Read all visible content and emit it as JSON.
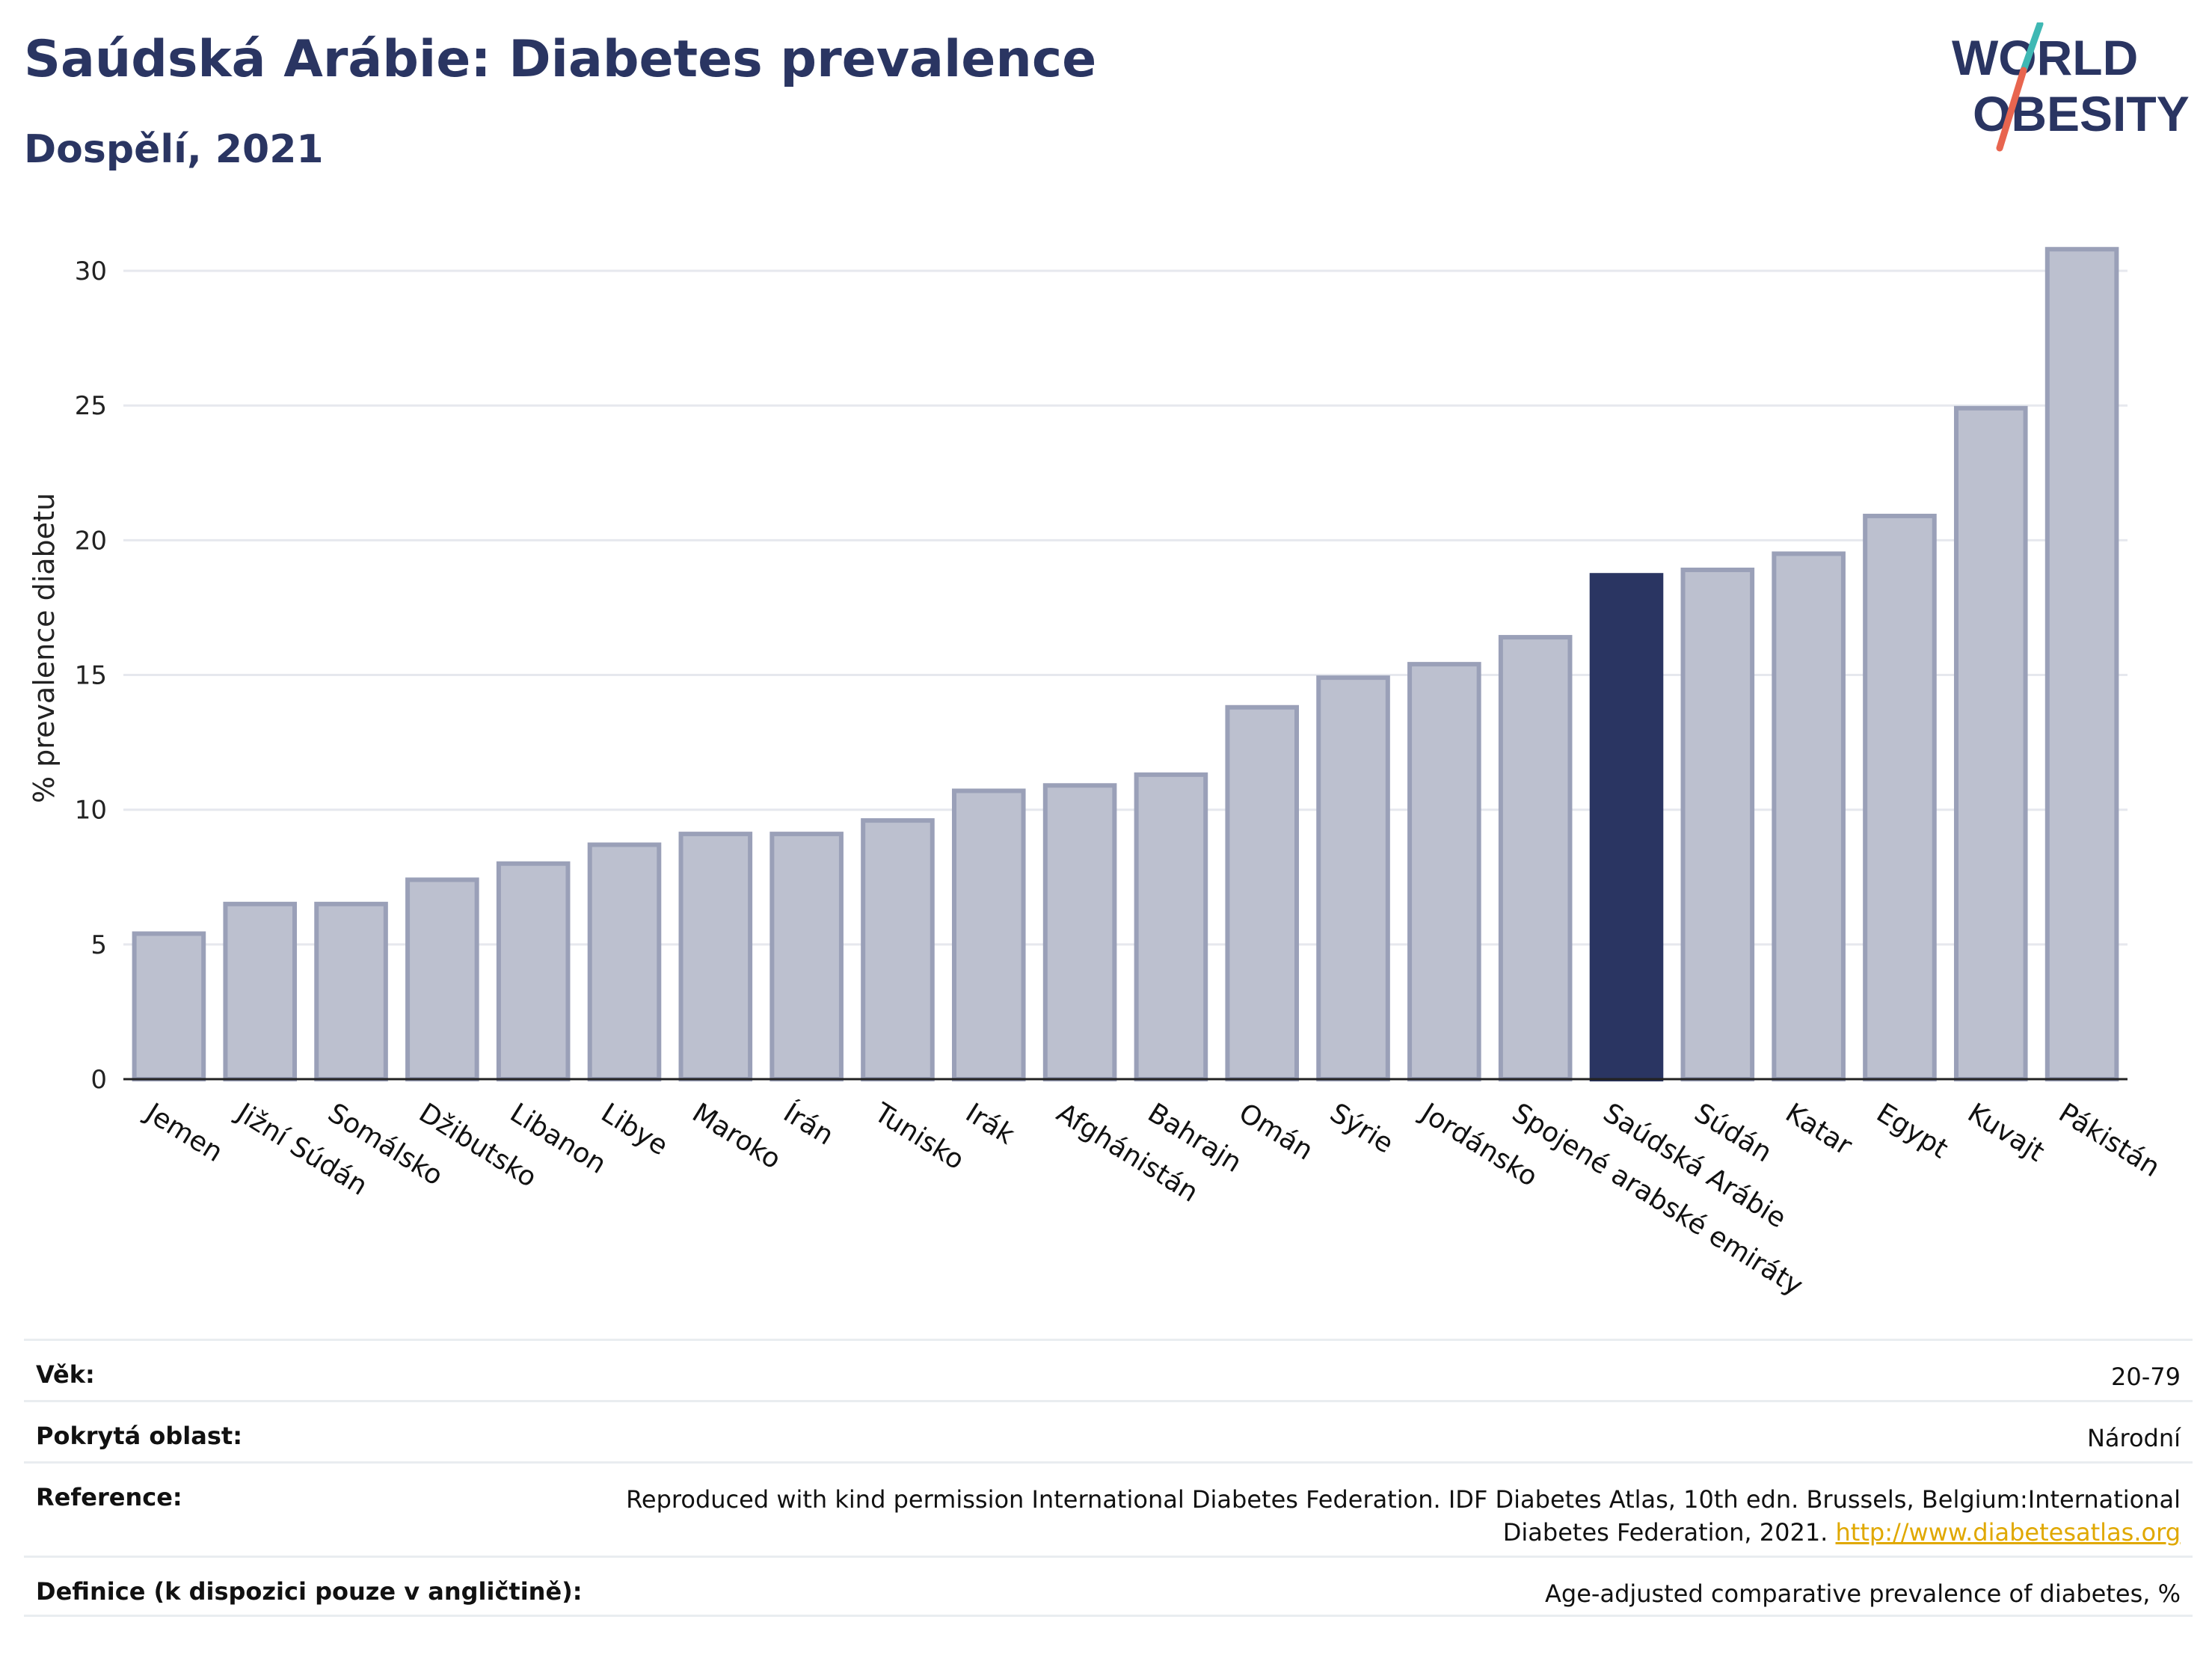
{
  "header": {
    "title": "Saúdská Arábie: Diabetes prevalence",
    "subtitle": "Dospělí, 2021"
  },
  "logo": {
    "line1": "WORLD",
    "line2": "OBESITY",
    "accent_teal": "#3fb8b4",
    "accent_red": "#e8654f"
  },
  "colors": {
    "bar_default": "#bcc0cf",
    "bar_border": "#9aa0b8",
    "bar_highlight": "#2a3562",
    "title": "#2a3562"
  },
  "chart_data": {
    "type": "bar",
    "ylabel": "% prevalence diabetu",
    "xlabel": "",
    "ylim": [
      0,
      32
    ],
    "yticks": [
      0,
      5,
      10,
      15,
      20,
      25,
      30
    ],
    "grid": true,
    "highlight": "Saúdská Arábie",
    "categories": [
      "Jemen",
      "Jižní Súdán",
      "Somálsko",
      "Džibutsko",
      "Libanon",
      "Libye",
      "Maroko",
      "Írán",
      "Tunisko",
      "Irák",
      "Afghánistán",
      "Bahrajn",
      "Omán",
      "Sýrie",
      "Jordánsko",
      "Spojené arabské emiráty",
      "Saúdská Arábie",
      "Súdán",
      "Katar",
      "Egypt",
      "Kuvajt",
      "Pákistán"
    ],
    "values": [
      5.4,
      6.5,
      6.5,
      7.4,
      8.0,
      8.7,
      9.1,
      9.1,
      9.6,
      10.7,
      10.9,
      11.3,
      13.8,
      14.9,
      15.4,
      16.4,
      18.7,
      18.9,
      19.5,
      20.9,
      24.9,
      30.8
    ]
  },
  "meta": [
    {
      "key": "Věk:",
      "value": "20-79"
    },
    {
      "key": "Pokrytá oblast:",
      "value": "Národní"
    },
    {
      "key": "Reference:",
      "value": "Reproduced with kind permission International Diabetes Federation.  IDF Diabetes Atlas, 10th edn. Brussels, Belgium:International Diabetes Federation, 2021. ",
      "link": "http://www.diabetesatlas.org"
    },
    {
      "key": "Definice (k dispozici pouze v angličtině):",
      "value": "Age-adjusted comparative prevalence of diabetes, %"
    }
  ]
}
